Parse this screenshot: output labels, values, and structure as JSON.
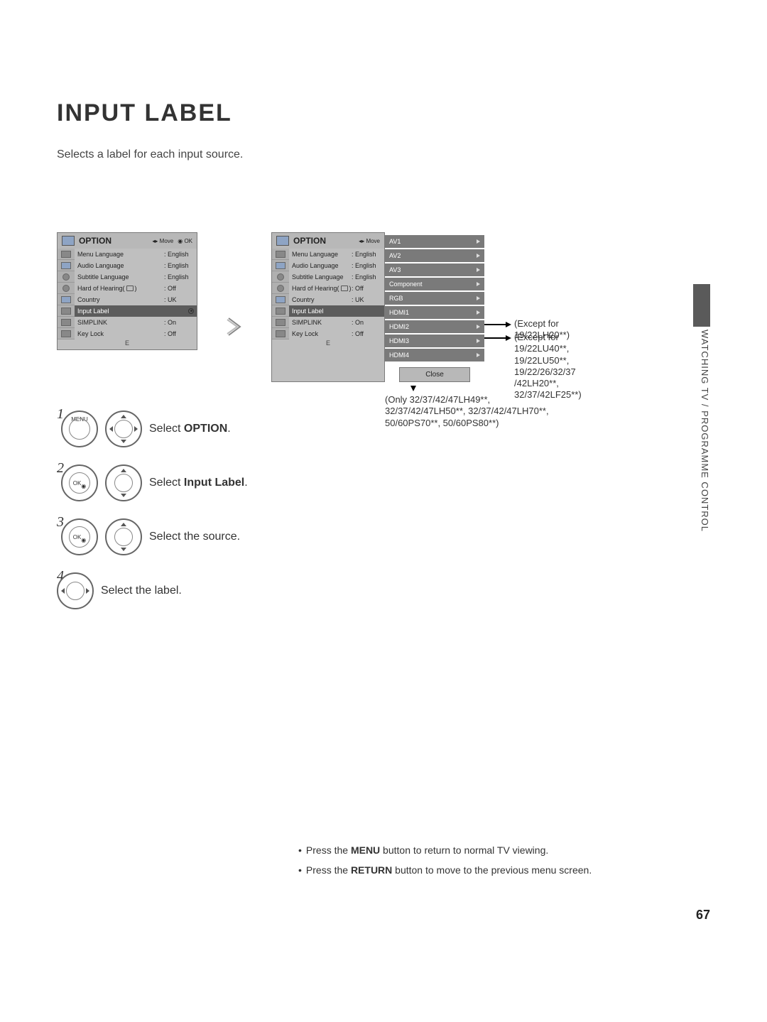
{
  "title": "INPUT LABEL",
  "subtitle": "Selects a label for each input source.",
  "side_section": "WATCHING TV / PROGRAMME CONTROL",
  "page_number": "67",
  "osd": {
    "header": "OPTION",
    "move": "Move",
    "ok": "OK",
    "rows": [
      {
        "label": "Menu Language",
        "value": ": English"
      },
      {
        "label": "Audio Language",
        "value": ": English"
      },
      {
        "label": "Subtitle Language",
        "value": ": English"
      },
      {
        "label": "Hard of Hearing(",
        "value": ": Off"
      },
      {
        "label": "Country",
        "value": ": UK"
      },
      {
        "label": "Input Label",
        "value": "",
        "highlight": true
      },
      {
        "label": "SIMPLINK",
        "value": ": On"
      },
      {
        "label": "Key Lock",
        "value": ": Off"
      }
    ],
    "footer_mark": "E"
  },
  "input_list": {
    "items": [
      "AV1",
      "AV2",
      "AV3",
      "Component",
      "RGB",
      "HDMI1",
      "HDMI2",
      "HDMI3",
      "HDMI4"
    ],
    "close": "Close"
  },
  "annotations": {
    "hdmi2": "(Except for 19/22LH20**)",
    "hdmi3": "(Except for\n19/22LU40**,\n19/22LU50**,\n19/22/26/32/37\n/42LH20**,\n32/37/42LF25**)",
    "hdmi4": "(Only 32/37/42/47LH49**,\n32/37/42/47LH50**, 32/37/42/47LH70**,\n50/60PS70**, 50/60PS80**)"
  },
  "steps": {
    "s1": {
      "btn": "MENU",
      "text_pre": "Select ",
      "text_bold": "OPTION",
      "text_post": "."
    },
    "s2": {
      "btn": "OK",
      "text_pre": "Select ",
      "text_bold": "Input Label",
      "text_post": "."
    },
    "s3": {
      "btn": "OK",
      "text": "Select the source."
    },
    "s4": {
      "text": "Select the label."
    }
  },
  "footer": {
    "line1_pre": "Press the ",
    "line1_bold": "MENU",
    "line1_post": " button to return to normal TV viewing.",
    "line2_pre": "Press the ",
    "line2_bold": "RETURN",
    "line2_post": " button to move to the previous menu screen."
  }
}
